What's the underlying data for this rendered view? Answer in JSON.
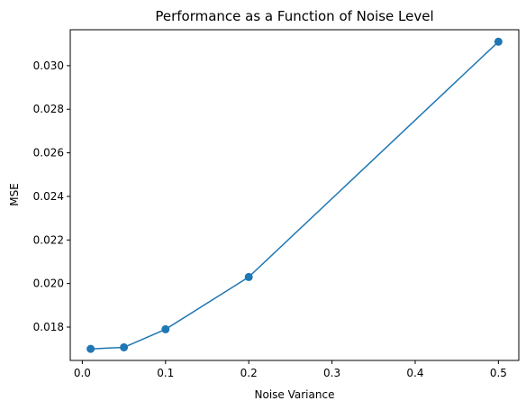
{
  "chart_data": {
    "type": "line",
    "title": "Performance as a Function of Noise Level",
    "xlabel": "Noise Variance",
    "ylabel": "MSE",
    "x": [
      0.01,
      0.05,
      0.1,
      0.2,
      0.5
    ],
    "series": [
      {
        "values": [
          0.017,
          0.01707,
          0.0179,
          0.0203,
          0.0311
        ]
      }
    ],
    "xlim": [
      -0.0145,
      0.5245
    ],
    "ylim": [
      0.01647,
      0.03165
    ],
    "xticks": [
      0.0,
      0.1,
      0.2,
      0.3,
      0.4,
      0.5
    ],
    "xtick_labels": [
      "0.0",
      "0.1",
      "0.2",
      "0.3",
      "0.4",
      "0.5"
    ],
    "yticks": [
      0.018,
      0.02,
      0.022,
      0.024,
      0.026,
      0.028,
      0.03
    ],
    "ytick_labels": [
      "0.018",
      "0.020",
      "0.022",
      "0.024",
      "0.026",
      "0.028",
      "0.030"
    ],
    "grid": false,
    "marker": "circle",
    "color": "#1f77b4"
  }
}
